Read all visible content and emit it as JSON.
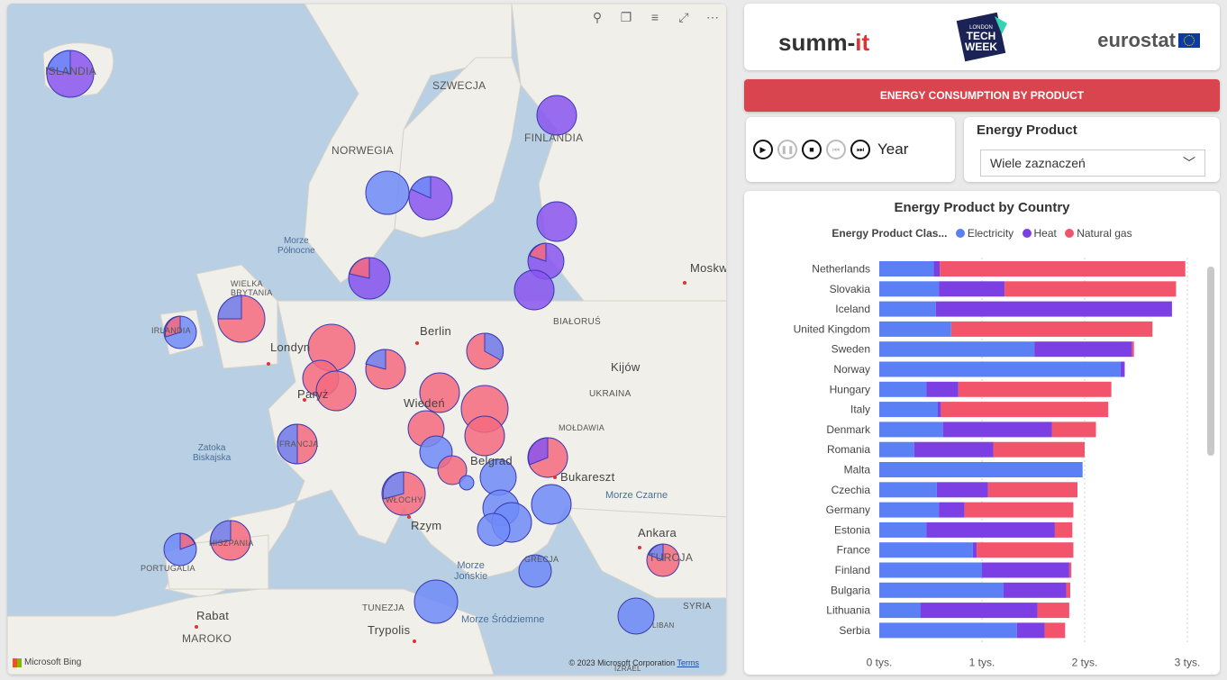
{
  "map": {
    "toolbar_icons": [
      "pin-icon",
      "copy-icon",
      "filter-icon",
      "focus-icon",
      "more-icon"
    ],
    "labels": {
      "iceland": "ISLANDIA",
      "sweden": "SZWECJA",
      "norway": "NORWEGIA",
      "finland": "FINLANDIA",
      "north_sea": "Morze\nPółnocne",
      "uk": "WIELKA\nBRYTANIA",
      "ireland": "IRLANDIA",
      "london": "Londyn",
      "paris": "Paryż",
      "berlin": "Berlin",
      "belarus": "BIAŁORUŚ",
      "ukraine": "UKRAINA",
      "kyiv": "Kijów",
      "moscow": "Moskw",
      "moldova": "MOŁDAWIA",
      "bucharest": "Bukareszt",
      "black_sea": "Morze Czarne",
      "biscay": "Zatoka\nBiskajska",
      "rome": "Rzym",
      "belgrade": "Belgrad",
      "vienna": "Wiedeń",
      "ankara": "Ankara",
      "turkey": "TURCJA",
      "ionian": "Morze\nJońskie",
      "mediterranean": "Morze Śródziemne",
      "tunisia": "TUNEZJA",
      "tripoli": "Trypolis",
      "rabat": "Rabat",
      "morocco": "MAROKO",
      "syria": "SYRIA",
      "portugal": "PORTUGALIA",
      "spain": "HISZPANIA",
      "france": "FRANCJA",
      "italy": "WŁOCHY",
      "greece": "GRECJA",
      "libya": "LIBAN",
      "israel": "IZRAEL"
    },
    "bing": "Microsoft Bing",
    "copyright": "© 2023 Microsoft Corporation",
    "terms": "Terms"
  },
  "header": {
    "summit": "summ-",
    "summit_it": "it",
    "ltw_top": "LONDON",
    "ltw_mid": "TECH",
    "ltw_bot": "WEEK",
    "eurostat": "eurostat"
  },
  "title_bar": "ENERGY CONSUMPTION BY PRODUCT",
  "play_axis": {
    "label": "Year"
  },
  "slicer": {
    "title": "Energy Product",
    "value": "Wiele zaznaczeń"
  },
  "colors": {
    "electricity": "#5b7ff5",
    "heat": "#7b3fe4",
    "natural_gas": "#f2556b",
    "title_bar": "#d9454f"
  },
  "chart_data": {
    "type": "bar",
    "orientation": "horizontal",
    "stacked": true,
    "title": "Energy Product by Country",
    "legend_title": "Energy Product Clas...",
    "legend_position": "top-center",
    "categories": [
      "Netherlands",
      "Slovakia",
      "Iceland",
      "United Kingdom",
      "Sweden",
      "Norway",
      "Hungary",
      "Italy",
      "Denmark",
      "Romania",
      "Malta",
      "Czechia",
      "Germany",
      "Estonia",
      "France",
      "Finland",
      "Bulgaria",
      "Lithuania",
      "Serbia"
    ],
    "series": [
      {
        "name": "Electricity",
        "color": "#5b7ff5",
        "values": [
          530,
          580,
          550,
          700,
          1510,
          2350,
          460,
          570,
          620,
          340,
          1980,
          560,
          580,
          460,
          910,
          1000,
          1210,
          400,
          1340
        ]
      },
      {
        "name": "Heat",
        "color": "#7b3fe4",
        "values": [
          60,
          640,
          2300,
          0,
          950,
          40,
          310,
          30,
          1060,
          770,
          0,
          500,
          250,
          1250,
          40,
          850,
          610,
          1140,
          270
        ]
      },
      {
        "name": "Natural gas",
        "color": "#f2556b",
        "values": [
          2390,
          1670,
          0,
          1960,
          20,
          0,
          1490,
          1630,
          430,
          890,
          0,
          870,
          1060,
          170,
          940,
          20,
          40,
          310,
          200
        ]
      }
    ],
    "xticks": [
      "0 tys.",
      "1 tys.",
      "2 tys.",
      "3 tys."
    ],
    "xtick_values": [
      0,
      1000,
      2000,
      3000
    ],
    "xlim": [
      0,
      3000
    ],
    "grid": true
  }
}
